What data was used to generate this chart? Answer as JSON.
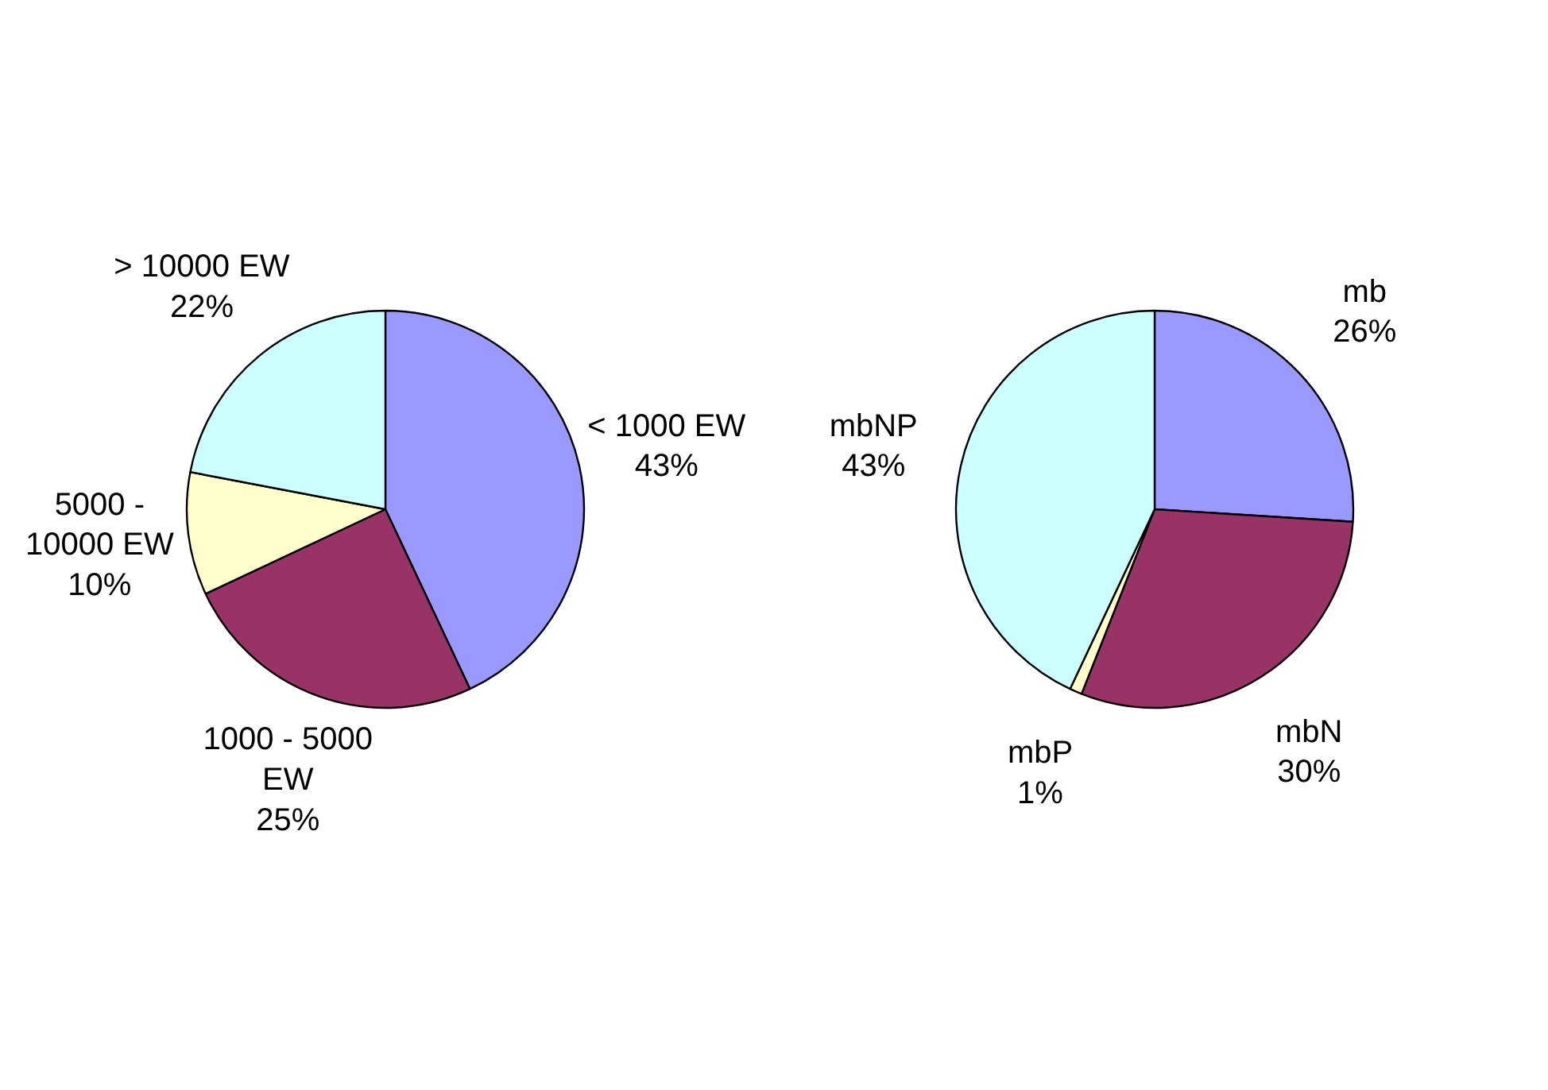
{
  "chart_data": [
    {
      "type": "pie",
      "categories": [
        "< 1000 EW",
        "1000 - 5000 EW",
        "5000 - 10000 EW",
        "> 10000 EW"
      ],
      "values": [
        43,
        25,
        10,
        22
      ],
      "value_labels": [
        "43%",
        "25%",
        "10%",
        "22%"
      ],
      "colors": [
        "#9999ff",
        "#993366",
        "#ffffcc",
        "#ccffff"
      ]
    },
    {
      "type": "pie",
      "categories": [
        "mb",
        "mbN",
        "mbP",
        "mbNP"
      ],
      "values": [
        26,
        30,
        1,
        43
      ],
      "value_labels": [
        "26%",
        "30%",
        "1%",
        "43%"
      ],
      "colors": [
        "#9999ff",
        "#993366",
        "#ffffcc",
        "#ccffff"
      ]
    }
  ]
}
